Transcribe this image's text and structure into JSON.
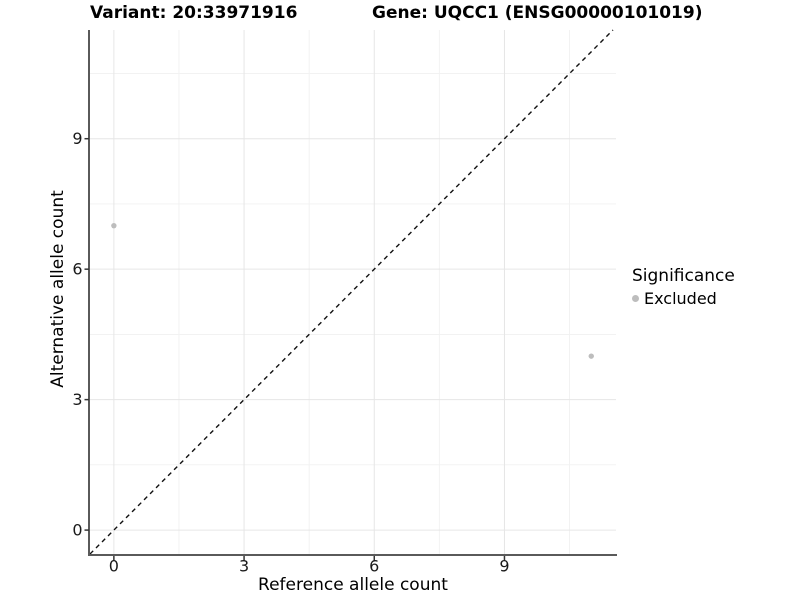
{
  "header": {
    "variant_title": "Variant: 20:33971916",
    "gene_title": "Gene: UQCC1 (ENSG00000101019)"
  },
  "legend": {
    "title": "Significance",
    "items": [
      {
        "label": "Excluded",
        "color": "#bdbdbd"
      }
    ]
  },
  "chart_data": {
    "type": "scatter",
    "title": "Variant: 20:33971916 | Gene: UQCC1 (ENSG00000101019)",
    "xlabel": "Reference allele count",
    "ylabel": "Alternative allele count",
    "xlim": [
      -0.55,
      11.57
    ],
    "ylim": [
      -0.55,
      11.5
    ],
    "xticks": [
      0,
      3,
      6,
      9
    ],
    "yticks": [
      0,
      3,
      6,
      9
    ],
    "minor_ticks": [
      1.5,
      4.5,
      7.5,
      10.5
    ],
    "grid": "major+minor",
    "legend_position": "right",
    "series": [
      {
        "name": "Excluded",
        "color": "#bdbdbd",
        "marker": "circle",
        "points": [
          {
            "x": 0,
            "y": 7
          },
          {
            "x": 11,
            "y": 4
          }
        ]
      }
    ],
    "reference_line": {
      "type": "identity y=x",
      "style": "dashed",
      "color": "#111111"
    }
  },
  "style": {
    "background": "#ffffff",
    "axis_line": "#5a5a5a",
    "tick_mark": "#343434",
    "tick_label_color": "#1a1a1a",
    "grid_major": "#e6e6e6",
    "grid_minor": "#f1f1f1"
  }
}
